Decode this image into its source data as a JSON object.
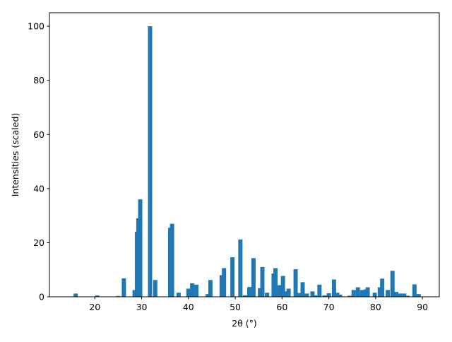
{
  "chart_data": {
    "type": "bar",
    "xlabel": "2θ (°)",
    "ylabel": "Intensities (scaled)",
    "color": "#1f77b4",
    "bar_width": 0.9,
    "x": [
      15.9,
      20.5,
      25.0,
      26.2,
      28.5,
      29.0,
      29.3,
      29.7,
      31.8,
      32.9,
      36.1,
      36.5,
      37.9,
      40.0,
      40.8,
      41.7,
      44.1,
      44.7,
      47.1,
      47.6,
      49.4,
      51.1,
      52.1,
      53.0,
      53.9,
      55.3,
      55.8,
      56.8,
      58.2,
      58.6,
      59.5,
      60.2,
      60.8,
      61.4,
      62.9,
      63.6,
      64.4,
      65.3,
      66.5,
      67.1,
      68.0,
      69.1,
      70.0,
      71.1,
      71.8,
      72.4,
      74.4,
      75.3,
      76.2,
      77.1,
      77.9,
      78.3,
      79.8,
      80.9,
      81.4,
      82.6,
      83.6,
      84.4,
      85.2,
      86.1,
      86.8,
      88.3,
      89.2
    ],
    "values": [
      1.2,
      0.5,
      0.3,
      6.8,
      2.5,
      24,
      29,
      36,
      100,
      6.2,
      25.5,
      27,
      1.5,
      3,
      5,
      4.5,
      1,
      6.2,
      8,
      10.6,
      14.6,
      21.2,
      0.5,
      3.6,
      14.3,
      3.2,
      11,
      1.5,
      8.6,
      10.6,
      4.3,
      7.7,
      2,
      3,
      10.2,
      1.4,
      5.4,
      1.2,
      2,
      0.5,
      4.5,
      0.5,
      1.3,
      6.4,
      1.5,
      0.8,
      0.4,
      2.5,
      3.5,
      2.5,
      2.7,
      3.5,
      1.5,
      3.5,
      6.7,
      2.5,
      9.6,
      1.8,
      1.2,
      1.2,
      0.4,
      4.6,
      1.0
    ],
    "xlim": [
      10.3,
      93.6
    ],
    "xticks": [
      20,
      30,
      40,
      50,
      60,
      70,
      80,
      90
    ],
    "ylim": [
      0,
      105
    ],
    "yticks": [
      0,
      20,
      40,
      60,
      80,
      100
    ]
  }
}
